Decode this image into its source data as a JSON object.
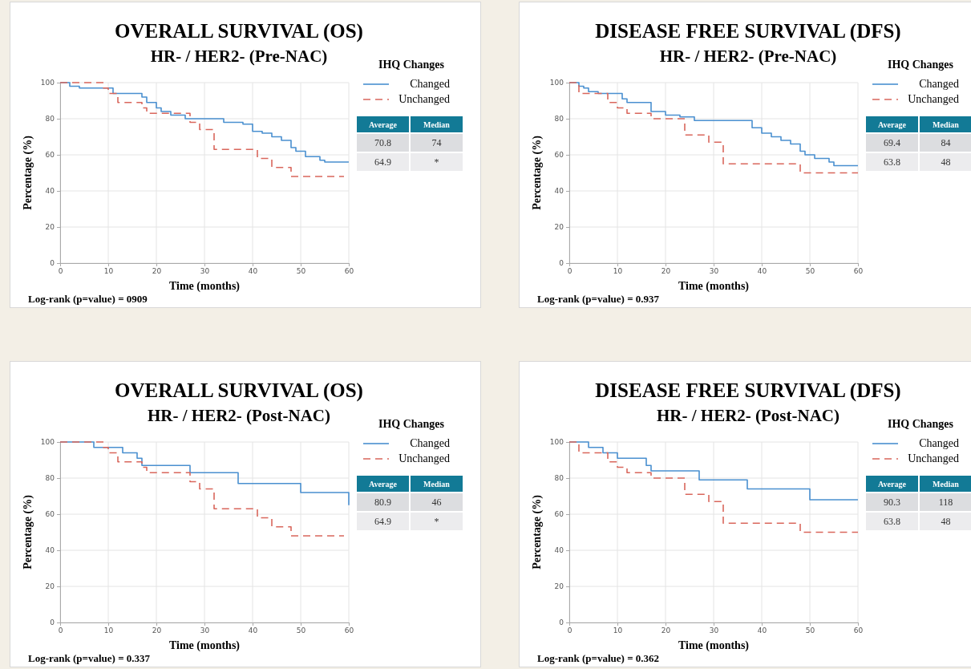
{
  "chart_data": [
    {
      "type": "step",
      "title": "OVERALL SURVIVAL (OS)",
      "subtitle": "HR- / HER2- (Pre-NAC)",
      "xlabel": "Time (months)",
      "ylabel": "Percentage (%)",
      "legend_title": "IHQ Changes",
      "legend": "right",
      "grid": true,
      "xlim": [
        0,
        60
      ],
      "ylim": [
        0,
        100
      ],
      "xticks": [
        0,
        10,
        20,
        30,
        40,
        50,
        60
      ],
      "yticks": [
        0,
        20,
        40,
        60,
        80,
        100
      ],
      "series": [
        {
          "name": "Changed",
          "color": "#4a90d0",
          "line_style": "solid",
          "x": [
            0,
            2,
            4,
            11,
            17,
            18,
            20,
            21,
            23,
            26,
            34,
            38,
            40,
            42,
            44,
            46,
            48,
            49,
            51,
            54,
            55,
            60
          ],
          "values": [
            100,
            98,
            97,
            94,
            92,
            89,
            86,
            84,
            82,
            80,
            78,
            77,
            73,
            72,
            70,
            68,
            64,
            62,
            59,
            57,
            56,
            56
          ]
        },
        {
          "name": "Unchanged",
          "color": "#d9675c",
          "line_style": "dashed",
          "x": [
            0,
            9,
            10,
            12,
            17,
            18,
            27,
            29,
            32,
            41,
            44,
            48,
            59
          ],
          "values": [
            100,
            97,
            94,
            89,
            86,
            83,
            78,
            74,
            63,
            58,
            53,
            48,
            48
          ]
        }
      ],
      "annotations": [
        "Average",
        "Median",
        "70.8",
        "74",
        "64.9",
        "*",
        "Log-rank (p=value) = 0909"
      ]
    },
    {
      "type": "step",
      "title": "DISEASE FREE SURVIVAL (DFS)",
      "subtitle": "HR- / HER2- (Pre-NAC)",
      "xlabel": "Time (months)",
      "ylabel": "Percentage (%)",
      "legend_title": "IHQ Changes",
      "legend": "right",
      "grid": true,
      "xlim": [
        0,
        60
      ],
      "ylim": [
        0,
        100
      ],
      "xticks": [
        0,
        10,
        20,
        30,
        40,
        50,
        60
      ],
      "yticks": [
        0,
        20,
        40,
        60,
        80,
        100
      ],
      "series": [
        {
          "name": "Changed",
          "color": "#4a90d0",
          "line_style": "solid",
          "x": [
            0,
            2,
            3,
            4,
            6,
            11,
            12,
            17,
            20,
            23,
            26,
            38,
            40,
            42,
            44,
            46,
            48,
            49,
            51,
            54,
            55,
            60
          ],
          "values": [
            100,
            98,
            97,
            95,
            94,
            91,
            89,
            84,
            82,
            81,
            79,
            75,
            72,
            70,
            68,
            66,
            62,
            60,
            58,
            56,
            54,
            54
          ]
        },
        {
          "name": "Unchanged",
          "color": "#d9675c",
          "line_style": "dashed",
          "x": [
            0,
            2,
            8,
            10,
            12,
            17,
            24,
            29,
            32,
            48,
            60
          ],
          "values": [
            100,
            94,
            89,
            86,
            83,
            80,
            71,
            67,
            55,
            50,
            50
          ]
        }
      ],
      "annotations": [
        "Average",
        "Median",
        "69.4",
        "84",
        "63.8",
        "48",
        "Log-rank (p=value) = 0.937"
      ]
    },
    {
      "type": "step",
      "title": "OVERALL SURVIVAL (OS)",
      "subtitle": "HR- / HER2- (Post-NAC)",
      "xlabel": "Time (months)",
      "ylabel": "Percentage (%)",
      "legend_title": "IHQ Changes",
      "legend": "right",
      "grid": true,
      "xlim": [
        0,
        60
      ],
      "ylim": [
        0,
        100
      ],
      "xticks": [
        0,
        10,
        20,
        30,
        40,
        50,
        60
      ],
      "yticks": [
        0,
        20,
        40,
        60,
        80,
        100
      ],
      "series": [
        {
          "name": "Changed",
          "color": "#4a90d0",
          "line_style": "solid",
          "x": [
            0,
            7,
            13,
            16,
            17,
            27,
            37,
            50,
            60
          ],
          "values": [
            100,
            97,
            94,
            91,
            87,
            83,
            77,
            72,
            65
          ]
        },
        {
          "name": "Unchanged",
          "color": "#d9675c",
          "line_style": "dashed",
          "x": [
            0,
            9,
            10,
            12,
            17,
            18,
            27,
            29,
            32,
            41,
            44,
            48,
            59
          ],
          "values": [
            100,
            97,
            94,
            89,
            86,
            83,
            78,
            74,
            63,
            58,
            53,
            48,
            48
          ]
        }
      ],
      "annotations": [
        "Average",
        "Median",
        "80.9",
        "46",
        "64.9",
        "*",
        "Log-rank (p=value) = 0.337"
      ]
    },
    {
      "type": "step",
      "title": "DISEASE FREE SURVIVAL (DFS)",
      "subtitle": "HR- / HER2- (Post-NAC)",
      "xlabel": "Time (months)",
      "ylabel": "Percentage (%)",
      "legend_title": "IHQ Changes",
      "legend": "right",
      "grid": true,
      "xlim": [
        0,
        60
      ],
      "ylim": [
        0,
        100
      ],
      "xticks": [
        0,
        10,
        20,
        30,
        40,
        50,
        60
      ],
      "yticks": [
        0,
        20,
        40,
        60,
        80,
        100
      ],
      "series": [
        {
          "name": "Changed",
          "color": "#4a90d0",
          "line_style": "solid",
          "x": [
            0,
            4,
            7,
            10,
            16,
            17,
            27,
            37,
            50,
            60
          ],
          "values": [
            100,
            97,
            94,
            91,
            87,
            84,
            79,
            74,
            68,
            68
          ]
        },
        {
          "name": "Unchanged",
          "color": "#d9675c",
          "line_style": "dashed",
          "x": [
            0,
            2,
            8,
            10,
            12,
            17,
            24,
            29,
            32,
            48,
            60
          ],
          "values": [
            100,
            94,
            89,
            86,
            83,
            80,
            71,
            67,
            55,
            50,
            50
          ]
        }
      ],
      "annotations": [
        "Average",
        "Median",
        "90.3",
        "118",
        "63.8",
        "48",
        "Log-rank (p=value) = 0.362"
      ]
    }
  ]
}
